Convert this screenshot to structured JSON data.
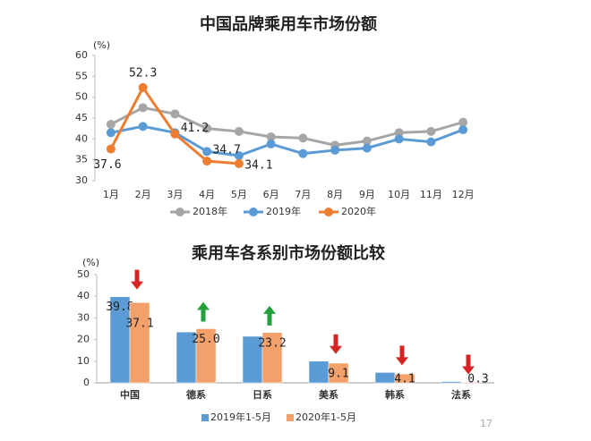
{
  "chart_data": [
    {
      "type": "line",
      "title": "中国品牌乘用车市场份额",
      "ylabel": "(%)",
      "categories": [
        "1月",
        "2月",
        "3月",
        "4月",
        "5月",
        "6月",
        "7月",
        "8月",
        "9月",
        "10月",
        "11月",
        "12月"
      ],
      "ylim": [
        30,
        60
      ],
      "yticks": [
        30,
        35,
        40,
        45,
        50,
        55,
        60
      ],
      "grid": false,
      "legend": "bottom",
      "series": [
        {
          "name": "2018年",
          "color": "#a6a6a6",
          "values": [
            43.5,
            47.5,
            46,
            42.5,
            41.8,
            40.5,
            40.2,
            38.5,
            39.5,
            41.5,
            41.8,
            44
          ]
        },
        {
          "name": "2019年",
          "color": "#5b9bd5",
          "values": [
            41.5,
            43,
            41.5,
            37,
            36,
            38.8,
            36.5,
            37.3,
            37.8,
            40,
            39.3,
            42.2
          ]
        },
        {
          "name": "2020年",
          "color": "#ed7d31",
          "values": [
            37.6,
            52.3,
            41.2,
            34.7,
            34.1,
            null,
            null,
            null,
            null,
            null,
            null,
            null
          ],
          "data_labels": true
        }
      ]
    },
    {
      "type": "bar",
      "title": "乘用车各系别市场份额比较",
      "ylabel": "(%)",
      "categories": [
        "中国",
        "德系",
        "日系",
        "美系",
        "韩系",
        "法系"
      ],
      "ylim": [
        0,
        50
      ],
      "yticks": [
        0,
        10,
        20,
        30,
        40,
        50
      ],
      "grid": false,
      "legend": "bottom",
      "arrows": [
        "down",
        "up",
        "up",
        "down",
        "down",
        "down"
      ],
      "arrow_up_color": "#22a03c",
      "arrow_down_color": "#d62424",
      "series": [
        {
          "name": "2019年1-5月",
          "color": "#5b9bd5",
          "values": [
            39.8,
            23.5,
            21.5,
            10,
            4.8,
            0.6
          ],
          "value_labels": [
            "39.8",
            null,
            null,
            null,
            null,
            null
          ]
        },
        {
          "name": "2020年1-5月",
          "color": "#f4a06a",
          "values": [
            37.1,
            25.0,
            23.2,
            9.1,
            4.1,
            0.3
          ],
          "value_labels": [
            "37.1",
            "25.0",
            "23.2",
            "9.1",
            "4.1",
            "0.3"
          ]
        }
      ]
    }
  ],
  "page_number": "17"
}
